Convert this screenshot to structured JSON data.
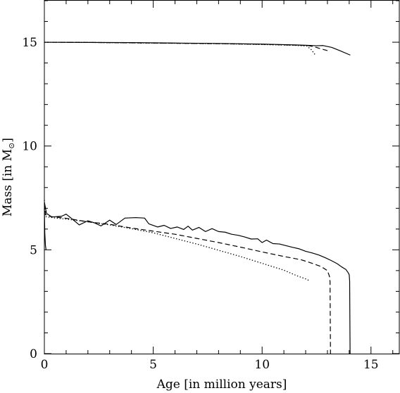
{
  "chart_data": {
    "type": "line",
    "title": "",
    "xlabel": "Age [in million years]",
    "ylabel_prefix": "Mass [in M",
    "ylabel_subscript": "⊙",
    "ylabel_suffix": "]",
    "xlim": [
      0,
      16.3
    ],
    "ylim": [
      0,
      17
    ],
    "xticks_major": [
      0,
      5,
      10,
      15
    ],
    "xtick_labels": [
      "0",
      "5",
      "10",
      "15"
    ],
    "yticks_major": [
      0,
      5,
      10,
      15
    ],
    "ytick_labels": [
      "0",
      "5",
      "10",
      "15"
    ],
    "xticks_minor_step": 1,
    "yticks_minor_step": 1,
    "grid": false,
    "series": [
      {
        "style": "solid",
        "points": [
          [
            0,
            15.0
          ],
          [
            2,
            14.99
          ],
          [
            4,
            14.98
          ],
          [
            6,
            14.96
          ],
          [
            8,
            14.94
          ],
          [
            10,
            14.91
          ],
          [
            11.5,
            14.87
          ],
          [
            12.1,
            14.85
          ],
          [
            12.5,
            14.83
          ],
          [
            12.8,
            14.84
          ],
          [
            13.2,
            14.75
          ],
          [
            13.6,
            14.58
          ],
          [
            14.05,
            14.38
          ]
        ]
      },
      {
        "style": "dashed",
        "points": [
          [
            0,
            15.0
          ],
          [
            2,
            14.99
          ],
          [
            4,
            14.97
          ],
          [
            6,
            14.95
          ],
          [
            8,
            14.93
          ],
          [
            10,
            14.9
          ],
          [
            11.5,
            14.86
          ],
          [
            12.1,
            14.84
          ],
          [
            12.4,
            14.78
          ],
          [
            12.7,
            14.68
          ],
          [
            13.1,
            14.57
          ]
        ]
      },
      {
        "style": "dotted",
        "points": [
          [
            0,
            15.0
          ],
          [
            2,
            14.99
          ],
          [
            4,
            14.97
          ],
          [
            6,
            14.95
          ],
          [
            8,
            14.93
          ],
          [
            10,
            14.89
          ],
          [
            11.5,
            14.85
          ],
          [
            12.05,
            14.82
          ],
          [
            12.25,
            14.65
          ],
          [
            12.45,
            14.38
          ]
        ]
      },
      {
        "style": "solid",
        "points": [
          [
            0,
            7.3
          ],
          [
            0.1,
            6.75
          ],
          [
            0.35,
            6.58
          ],
          [
            0.8,
            6.62
          ],
          [
            1.0,
            6.72
          ],
          [
            1.4,
            6.38
          ],
          [
            1.6,
            6.2
          ],
          [
            2.0,
            6.4
          ],
          [
            2.3,
            6.3
          ],
          [
            2.6,
            6.15
          ],
          [
            3.0,
            6.43
          ],
          [
            3.3,
            6.22
          ],
          [
            3.7,
            6.53
          ],
          [
            4.2,
            6.55
          ],
          [
            4.6,
            6.53
          ],
          [
            4.8,
            6.25
          ],
          [
            5.2,
            6.1
          ],
          [
            5.5,
            6.18
          ],
          [
            5.8,
            6.03
          ],
          [
            6.1,
            6.1
          ],
          [
            6.4,
            5.98
          ],
          [
            6.6,
            6.14
          ],
          [
            6.8,
            5.95
          ],
          [
            7.1,
            6.08
          ],
          [
            7.4,
            5.88
          ],
          [
            7.7,
            6.02
          ],
          [
            8.0,
            5.88
          ],
          [
            8.3,
            5.85
          ],
          [
            8.6,
            5.75
          ],
          [
            8.9,
            5.7
          ],
          [
            9.2,
            5.62
          ],
          [
            9.5,
            5.52
          ],
          [
            9.8,
            5.53
          ],
          [
            10.0,
            5.35
          ],
          [
            10.2,
            5.47
          ],
          [
            10.5,
            5.3
          ],
          [
            10.8,
            5.28
          ],
          [
            11.1,
            5.2
          ],
          [
            11.4,
            5.12
          ],
          [
            11.7,
            5.05
          ],
          [
            12.0,
            4.93
          ],
          [
            12.3,
            4.85
          ],
          [
            12.6,
            4.75
          ],
          [
            12.9,
            4.62
          ],
          [
            13.2,
            4.47
          ],
          [
            13.45,
            4.33
          ],
          [
            13.65,
            4.18
          ],
          [
            13.85,
            4.05
          ],
          [
            13.95,
            3.9
          ],
          [
            14.0,
            3.8
          ],
          [
            14.02,
            3.5
          ],
          [
            14.04,
            0
          ]
        ]
      },
      {
        "style": "dashed",
        "points": [
          [
            0,
            7.25
          ],
          [
            0.05,
            6.7
          ],
          [
            0.3,
            6.6
          ],
          [
            1.0,
            6.52
          ],
          [
            2.0,
            6.35
          ],
          [
            3.0,
            6.23
          ],
          [
            4.0,
            6.05
          ],
          [
            5.0,
            5.9
          ],
          [
            6.0,
            5.75
          ],
          [
            7.0,
            5.55
          ],
          [
            8.0,
            5.35
          ],
          [
            9.0,
            5.13
          ],
          [
            10.0,
            4.9
          ],
          [
            11.0,
            4.68
          ],
          [
            11.8,
            4.52
          ],
          [
            12.3,
            4.35
          ],
          [
            12.7,
            4.2
          ],
          [
            13.0,
            4.0
          ],
          [
            13.1,
            3.7
          ],
          [
            13.12,
            3.45
          ],
          [
            13.14,
            0
          ]
        ]
      },
      {
        "style": "dotted",
        "points": [
          [
            0,
            7.4
          ],
          [
            0.05,
            6.6
          ],
          [
            0.5,
            6.53
          ],
          [
            1.0,
            6.48
          ],
          [
            2.0,
            6.35
          ],
          [
            3.0,
            6.2
          ],
          [
            4.0,
            6.02
          ],
          [
            5.0,
            5.82
          ],
          [
            6.0,
            5.55
          ],
          [
            7.0,
            5.28
          ],
          [
            8.0,
            4.98
          ],
          [
            9.0,
            4.68
          ],
          [
            10.0,
            4.35
          ],
          [
            11.0,
            4.02
          ],
          [
            11.6,
            3.75
          ],
          [
            12.0,
            3.6
          ],
          [
            12.2,
            3.5
          ]
        ]
      },
      {
        "style": "solid",
        "points": [
          [
            0,
            7.0
          ],
          [
            0.02,
            5.8
          ],
          [
            0.05,
            5.2
          ],
          [
            0.08,
            5.0
          ]
        ]
      }
    ]
  }
}
